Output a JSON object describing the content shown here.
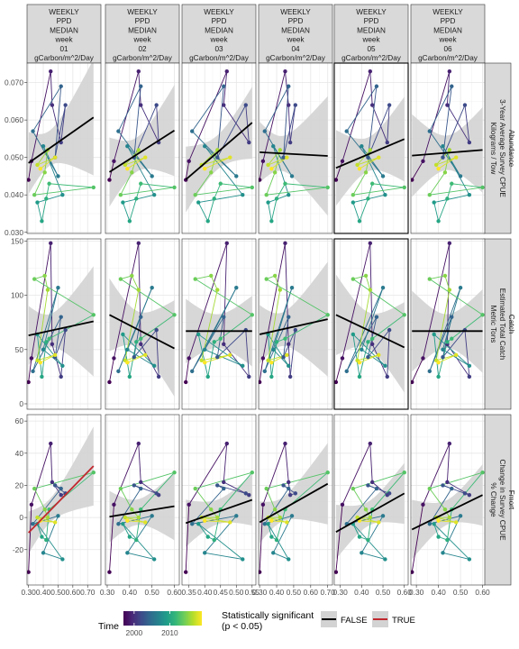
{
  "chart_data": {
    "type": "scatter",
    "facet_columns": [
      {
        "label": [
          "WEEKLY",
          "PPD",
          "MEDIAN",
          "week",
          "01",
          "gCarbon/m^2/Day"
        ],
        "xlim": [
          0.29,
          0.79
        ],
        "xticks": [
          0.3,
          0.4,
          0.5,
          0.6,
          0.7
        ],
        "xtick_labels": [
          "0.30",
          "0.40",
          "0.50",
          "0.60",
          "0.70"
        ]
      },
      {
        "label": [
          "WEEKLY",
          "PPD",
          "MEDIAN",
          "week",
          "02",
          "gCarbon/m^2/Day"
        ],
        "xlim": [
          0.292,
          0.622
        ],
        "xticks": [
          0.3,
          0.4,
          0.5,
          0.6
        ],
        "xtick_labels": [
          "0.30",
          "0.40",
          "0.50",
          "0.60"
        ]
      },
      {
        "label": [
          "WEEKLY",
          "PPD",
          "MEDIAN",
          "week",
          "03",
          "gCarbon/m^2/Day"
        ],
        "xlim": [
          0.328,
          0.562
        ],
        "xticks": [
          0.35,
          0.4,
          0.45,
          0.5,
          0.55
        ],
        "xtick_labels": [
          "0.35",
          "0.40",
          "0.45",
          "0.50",
          "0.55"
        ]
      },
      {
        "label": [
          "WEEKLY",
          "PPD",
          "MEDIAN",
          "week",
          "04",
          "gCarbon/m^2/Day"
        ],
        "xlim": [
          0.294,
          0.728
        ],
        "xticks": [
          0.3,
          0.4,
          0.5,
          0.6,
          0.7
        ],
        "xtick_labels": [
          "0.30",
          "0.40",
          "0.50",
          "0.60",
          "0.70"
        ]
      },
      {
        "label": [
          "WEEKLY",
          "PPD",
          "MEDIAN",
          "week",
          "05",
          "gCarbon/m^2/Day"
        ],
        "xlim": [
          0.272,
          0.618
        ],
        "xticks": [
          0.3,
          0.4,
          0.5,
          0.6
        ],
        "xtick_labels": [
          "0.30",
          "0.40",
          "0.50",
          "0.60"
        ]
      },
      {
        "label": [
          "WEEKLY",
          "PPD",
          "MEDIAN",
          "week",
          "06",
          "gCarbon/m^2/Day"
        ],
        "xlim": [
          0.275,
          0.61
        ],
        "xticks": [
          0.3,
          0.4,
          0.5,
          0.6
        ],
        "xtick_labels": [
          "0.30",
          "0.40",
          "0.50",
          "0.60"
        ]
      }
    ],
    "facet_rows": [
      {
        "label": [
          "Abundance",
          "3-Year Average Survey CPUE",
          "Kilograms / Tow"
        ],
        "ylim": [
          0.0297,
          0.0752
        ],
        "yticks": [
          0.03,
          0.04,
          0.05,
          0.06,
          0.07
        ],
        "ytick_labels": [
          "0.030",
          "0.040",
          "0.050",
          "0.060",
          "0.070"
        ]
      },
      {
        "label": [
          "Catch",
          "Estimated Total Catch",
          "Metric Tons"
        ],
        "ylim": [
          -5,
          152
        ],
        "yticks": [
          0,
          50,
          100,
          150
        ],
        "ytick_labels": [
          "0",
          "50",
          "100",
          "150"
        ]
      },
      {
        "label": [
          "Fmort",
          "Change in Survey CPUE",
          "% Change"
        ],
        "ylim": [
          -42,
          64
        ],
        "yticks": [
          -20,
          0,
          20,
          40,
          60
        ],
        "ytick_labels": [
          "-20",
          "0",
          "20",
          "40",
          "60"
        ]
      }
    ],
    "years": [
      1997,
      1998,
      1999,
      2000,
      2001,
      2002,
      2003,
      2004,
      2005,
      2006,
      2007,
      2008,
      2009,
      2010,
      2011,
      2012,
      2013,
      2014,
      2015,
      2016,
      2017,
      2018,
      2019
    ],
    "x": [
      [
        0.3,
        0.32,
        0.45,
        0.46,
        0.52,
        0.55,
        0.48,
        0.52,
        0.33,
        0.5,
        0.4,
        0.53,
        0.36,
        0.39,
        0.42,
        0.44,
        0.74,
        0.34,
        0.41,
        0.43,
        0.36,
        0.48,
        0.38
      ],
      [
        0.31,
        0.33,
        0.44,
        0.45,
        0.53,
        0.52,
        0.42,
        0.45,
        0.35,
        0.5,
        0.39,
        0.51,
        0.37,
        0.4,
        0.43,
        0.45,
        0.6,
        0.36,
        0.41,
        0.44,
        0.38,
        0.47,
        0.39
      ],
      [
        0.34,
        0.35,
        0.47,
        0.46,
        0.54,
        0.53,
        0.44,
        0.46,
        0.36,
        0.5,
        0.4,
        0.52,
        0.38,
        0.41,
        0.43,
        0.45,
        0.55,
        0.37,
        0.42,
        0.44,
        0.39,
        0.48,
        0.4
      ],
      [
        0.3,
        0.32,
        0.45,
        0.47,
        0.48,
        0.51,
        0.44,
        0.47,
        0.33,
        0.49,
        0.38,
        0.47,
        0.35,
        0.37,
        0.4,
        0.45,
        0.7,
        0.34,
        0.39,
        0.42,
        0.35,
        0.46,
        0.37
      ],
      [
        0.28,
        0.31,
        0.44,
        0.45,
        0.52,
        0.53,
        0.43,
        0.47,
        0.33,
        0.5,
        0.4,
        0.51,
        0.36,
        0.39,
        0.43,
        0.45,
        0.6,
        0.36,
        0.42,
        0.44,
        0.38,
        0.48,
        0.39
      ],
      [
        0.28,
        0.33,
        0.45,
        0.44,
        0.54,
        0.52,
        0.42,
        0.46,
        0.36,
        0.5,
        0.42,
        0.54,
        0.38,
        0.4,
        0.44,
        0.46,
        0.6,
        0.36,
        0.43,
        0.45,
        0.39,
        0.48,
        0.4
      ]
    ],
    "y": [
      [
        0.044,
        0.049,
        0.073,
        0.064,
        0.054,
        0.064,
        0.05,
        0.069,
        0.057,
        0.045,
        0.053,
        0.04,
        0.038,
        0.033,
        0.039,
        0.043,
        0.042,
        0.04,
        0.046,
        0.052,
        0.048,
        0.05,
        0.047
      ],
      [
        20,
        42,
        148,
        55,
        25,
        68,
        43,
        80,
        30,
        107,
        50,
        35,
        64,
        25,
        57,
        60,
        82,
        115,
        118,
        105,
        40,
        45,
        38
      ],
      [
        -34,
        8,
        46,
        22,
        14,
        15,
        20,
        18,
        -4,
        1,
        -22,
        -26,
        -4,
        -12,
        -14,
        5,
        28,
        18,
        5,
        0,
        0,
        -3,
        -2
      ]
    ],
    "fits": [
      [
        {
          "x": [
            0.3,
            0.74
          ],
          "y": [
            0.0485,
            0.0607
          ],
          "significant": false
        },
        {
          "x": [
            0.31,
            0.6
          ],
          "y": [
            0.0461,
            0.0572
          ],
          "significant": false
        },
        {
          "x": [
            0.34,
            0.55
          ],
          "y": [
            0.0441,
            0.0593
          ],
          "significant": false
        },
        {
          "x": [
            0.3,
            0.7
          ],
          "y": [
            0.0514,
            0.0504
          ],
          "significant": false
        },
        {
          "x": [
            0.28,
            0.6
          ],
          "y": [
            0.0472,
            0.0549
          ],
          "significant": false
        },
        {
          "x": [
            0.28,
            0.6
          ],
          "y": [
            0.0505,
            0.052
          ],
          "significant": false
        }
      ],
      [
        {
          "x": [
            0.3,
            0.74
          ],
          "y": [
            63,
            76
          ],
          "significant": false
        },
        {
          "x": [
            0.31,
            0.6
          ],
          "y": [
            82,
            51
          ],
          "significant": false
        },
        {
          "x": [
            0.34,
            0.55
          ],
          "y": [
            67,
            67
          ],
          "significant": false
        },
        {
          "x": [
            0.3,
            0.7
          ],
          "y": [
            64,
            78
          ],
          "significant": false
        },
        {
          "x": [
            0.28,
            0.6
          ],
          "y": [
            82,
            52
          ],
          "significant": false
        },
        {
          "x": [
            0.28,
            0.6
          ],
          "y": [
            67,
            67
          ],
          "significant": false
        }
      ],
      [
        {
          "x": [
            0.3,
            0.74
          ],
          "y": [
            -9.5,
            32
          ],
          "significant": true
        },
        {
          "x": [
            0.31,
            0.6
          ],
          "y": [
            0.5,
            7
          ],
          "significant": false
        },
        {
          "x": [
            0.34,
            0.55
          ],
          "y": [
            -3.5,
            11
          ],
          "significant": false
        },
        {
          "x": [
            0.3,
            0.7
          ],
          "y": [
            -3,
            21
          ],
          "significant": false
        },
        {
          "x": [
            0.28,
            0.6
          ],
          "y": [
            -9,
            15
          ],
          "significant": false
        },
        {
          "x": [
            0.28,
            0.6
          ],
          "y": [
            -7.5,
            14
          ],
          "significant": false
        }
      ]
    ],
    "highlighted_panels": [
      [
        0,
        4
      ],
      [
        1,
        4
      ]
    ],
    "legend": {
      "time_title": "Time",
      "time_ticks": [
        2000,
        2010
      ],
      "time_tick_labels": [
        "2000",
        "2010"
      ],
      "time_range": [
        1997,
        2019
      ],
      "significance_title": [
        "Statistically significant",
        "(p < 0.05)"
      ],
      "significance_entries": [
        {
          "label": "FALSE",
          "color": "#000000"
        },
        {
          "label": "TRUE",
          "color": "#c0282e"
        }
      ]
    },
    "colors": {
      "ribbon": "#d3d3d3",
      "strip": "#d9d9d9",
      "false_line": "#000000",
      "true_line": "#c0282e"
    }
  }
}
